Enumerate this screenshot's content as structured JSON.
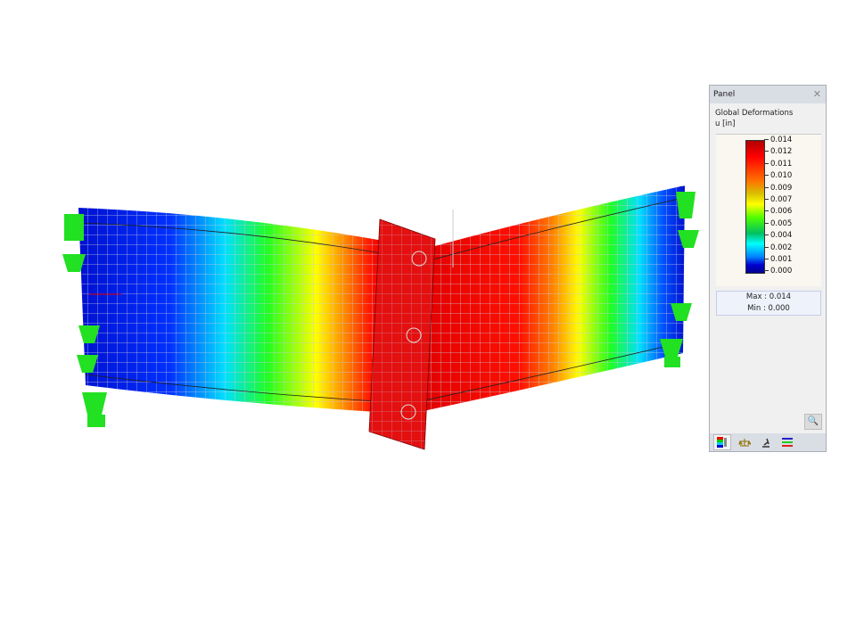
{
  "panel": {
    "title": "Panel",
    "close_icon": "close-icon",
    "result_type": "Global Deformations",
    "unit": "u [in]",
    "scale_values": [
      "0.014",
      "0.012",
      "0.011",
      "0.010",
      "0.009",
      "0.007",
      "0.006",
      "0.005",
      "0.004",
      "0.002",
      "0.001",
      "0.000"
    ],
    "max_label": "Max  :  0.014",
    "min_label": "Min   :  0.000",
    "tabs": [
      {
        "icon": "color-scale-icon",
        "active": true
      },
      {
        "icon": "balance-icon",
        "active": false
      },
      {
        "icon": "microscope-icon",
        "active": false
      },
      {
        "icon": "layers-icon",
        "active": false
      }
    ]
  },
  "colors": {
    "max": "#b00000",
    "min": "#000090",
    "support": "#22e022",
    "mesh": "#b0b0c8"
  }
}
